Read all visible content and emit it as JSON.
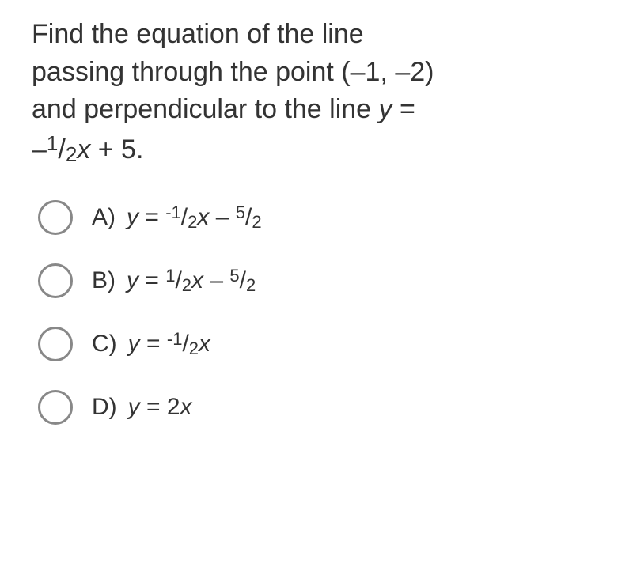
{
  "question": {
    "line1": "Find the equation of the line",
    "line2_a": "passing through the point (",
    "line2_b": "1, ",
    "line2_c": "2)",
    "line3_a": "and perpendicular to the line ",
    "line3_b": "y",
    "line3_c": " = ",
    "line4_neg": "–",
    "line4_num": "1",
    "line4_slash": "/",
    "line4_den": "2",
    "line4_x": "x",
    "line4_end": " + 5.",
    "neg_long": "–"
  },
  "options": {
    "A": {
      "letter": "A)",
      "y": "y",
      "eq": " = ",
      "neg": "-",
      "n1": "1",
      "s1": "/",
      "d1": "2",
      "x": "x",
      "op": " – ",
      "n2": "5",
      "s2": "/",
      "d2": "2"
    },
    "B": {
      "letter": "B)",
      "y": "y",
      "eq": " = ",
      "n1": "1",
      "s1": "/",
      "d1": "2",
      "x": "x",
      "op": " – ",
      "n2": "5",
      "s2": "/",
      "d2": "2"
    },
    "C": {
      "letter": "C)",
      "y": "y",
      "eq": " = ",
      "neg": "-",
      "n1": "1",
      "s1": "/",
      "d1": "2",
      "x": "x"
    },
    "D": {
      "letter": "D)",
      "y": "y",
      "eq": " = 2",
      "x": "x"
    }
  },
  "colors": {
    "text": "#333333",
    "radio_border": "#888888",
    "background": "#ffffff"
  }
}
